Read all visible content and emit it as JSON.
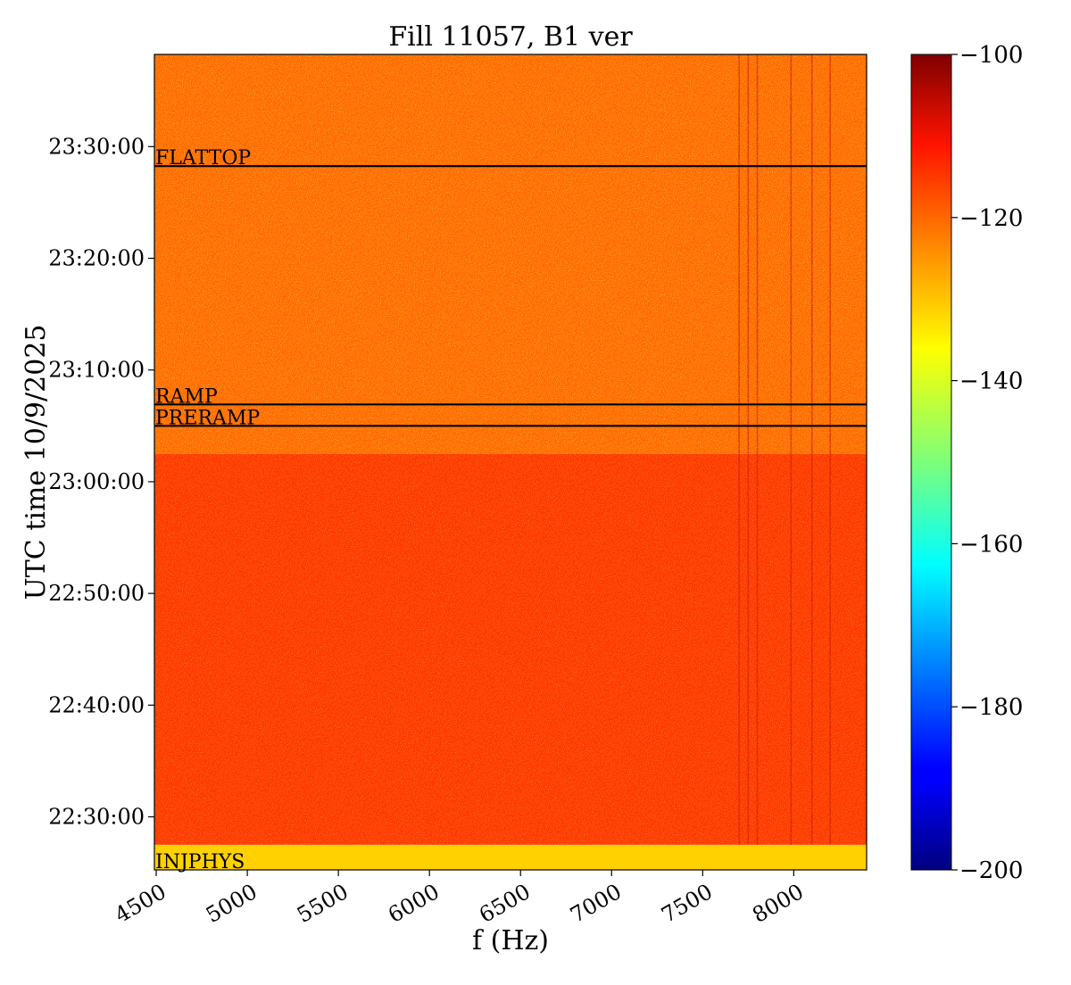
{
  "chart_data": {
    "type": "heatmap",
    "title": "Fill 11057, B1 ver",
    "xlabel": "f (Hz)",
    "ylabel": "UTC time 10/9/2025",
    "xlim": [
      4490,
      8400
    ],
    "x_ticks": [
      4500,
      5000,
      5500,
      6000,
      6500,
      7000,
      7500,
      8000
    ],
    "x_tick_labels": [
      "4500",
      "5000",
      "5500",
      "6000",
      "6500",
      "7000",
      "7500",
      "8000"
    ],
    "ylim": [
      "22:25:15",
      "23:38:15"
    ],
    "y_ticks": [
      "22:30:00",
      "22:40:00",
      "22:50:00",
      "23:00:00",
      "23:10:00",
      "23:20:00",
      "23:30:00"
    ],
    "y_tick_labels": [
      "22:30:00",
      "22:40:00",
      "22:50:00",
      "23:00:00",
      "23:10:00",
      "23:20:00",
      "23:30:00"
    ],
    "colorbar": {
      "range": [
        -200,
        -100
      ],
      "ticks": [
        -100,
        -120,
        -140,
        -160,
        -180,
        -200
      ],
      "tick_labels": [
        "−100",
        "−120",
        "−140",
        "−160",
        "−180",
        "−200"
      ],
      "colormap": "jet"
    },
    "regions": [
      {
        "from": "22:25:15",
        "to": "22:27:30",
        "level_dB": -133
      },
      {
        "from": "22:27:30",
        "to": "23:02:30",
        "level_dB": -118
      },
      {
        "from": "23:02:30",
        "to": "23:38:15",
        "level_dB": -123
      }
    ],
    "spectral_lines_hz": [
      7700,
      7750,
      7800,
      7985,
      8100,
      8200
    ],
    "phase_markers": [
      {
        "label": "FLATTOP",
        "time": "23:28:15"
      },
      {
        "label": "RAMP",
        "time": "23:06:55"
      },
      {
        "label": "PRERAMP",
        "time": "23:05:00"
      },
      {
        "label": "INJPHYS",
        "time": "22:25:15"
      }
    ],
    "grid": false
  }
}
